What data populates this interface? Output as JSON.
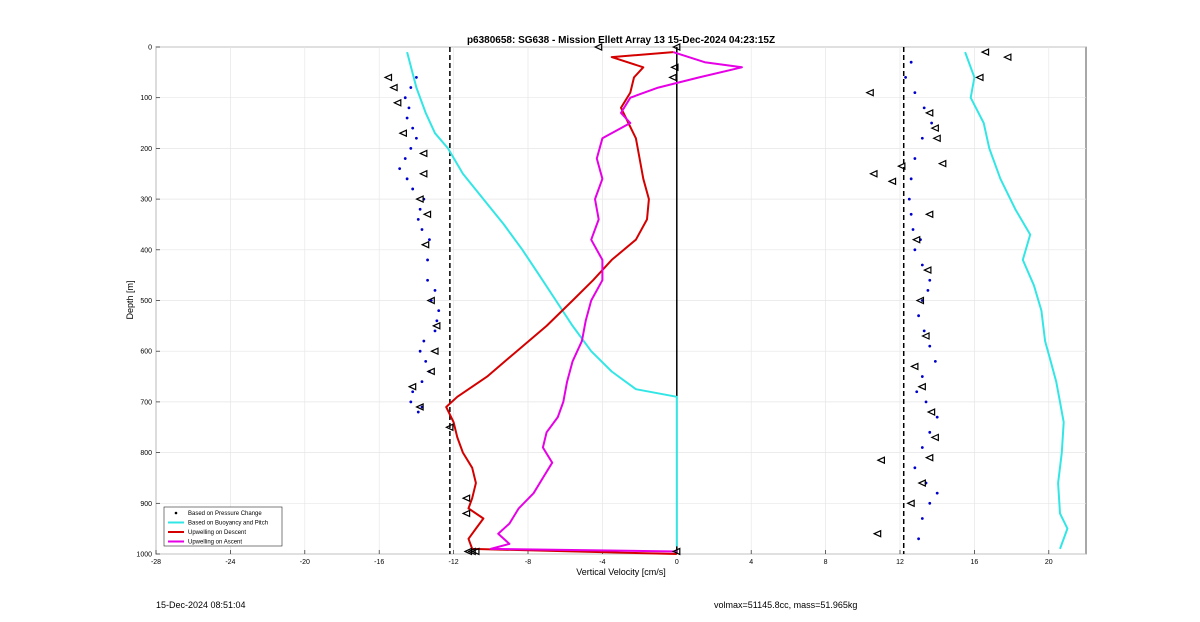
{
  "chart_data": {
    "type": "line",
    "title": "p6380658: SG638 - Mission Ellett Array 13 15-Dec-2024 04:23:15Z",
    "xlabel": "Vertical Velocity [cm/s]",
    "ylabel": "Depth [m]",
    "xlim": [
      -28,
      22
    ],
    "ylim": [
      0,
      1000
    ],
    "y_reversed": true,
    "grid": true,
    "x_ticks": [
      -28,
      -24,
      -20,
      -16,
      -12,
      -8,
      -4,
      0,
      4,
      8,
      12,
      16,
      20
    ],
    "y_ticks": [
      0,
      100,
      200,
      300,
      400,
      500,
      600,
      700,
      800,
      900,
      1000
    ],
    "legend_position": "bottom-left",
    "reference_lines": [
      {
        "kind": "dashed",
        "x": -12.2,
        "color": "#000000"
      },
      {
        "kind": "solid",
        "x": 0,
        "y_range": [
          0,
          1000
        ],
        "color": "#000000"
      },
      {
        "kind": "dashed",
        "x": 12.2,
        "color": "#000000"
      }
    ],
    "series": [
      {
        "name": "Based on Pressure Change",
        "style": "dots",
        "color": "#0000cc",
        "panels": [
          {
            "x": [
              -14.0,
              -14.3,
              -14.6,
              -14.4,
              -14.5,
              -14.2,
              -14.0,
              -14.3,
              -14.6,
              -14.9,
              -14.5,
              -14.2,
              -13.6,
              -13.8,
              -13.9,
              -13.7,
              -13.3,
              -13.4,
              -13.4,
              -13.0,
              -13.2,
              -12.8,
              -12.9,
              -13.0,
              -13.6,
              -13.8,
              -13.5,
              -13.3,
              -13.7,
              -14.2,
              -14.3,
              -13.7,
              -13.9
            ],
            "y": [
              60,
              80,
              100,
              120,
              140,
              160,
              180,
              200,
              220,
              240,
              260,
              280,
              300,
              320,
              340,
              360,
              380,
              420,
              460,
              480,
              500,
              520,
              540,
              560,
              580,
              600,
              620,
              640,
              660,
              680,
              700,
              710,
              720
            ]
          },
          {
            "x": [
              12.6,
              12.3,
              12.8,
              13.3,
              13.7,
              13.2,
              12.8,
              12.6,
              12.5,
              12.6,
              12.7,
              13.1,
              12.8,
              13.2,
              13.6,
              13.5,
              13.2,
              13.0,
              13.3,
              13.6,
              13.9,
              13.2,
              12.9,
              13.4,
              14.0,
              13.6,
              13.2,
              12.8,
              13.4,
              14.0,
              13.6,
              13.2,
              13.0
            ],
            "y": [
              30,
              60,
              90,
              120,
              150,
              180,
              220,
              260,
              300,
              330,
              360,
              380,
              400,
              430,
              460,
              480,
              500,
              530,
              560,
              590,
              620,
              650,
              680,
              700,
              730,
              760,
              790,
              830,
              860,
              880,
              900,
              930,
              970
            ]
          }
        ]
      },
      {
        "name": "Based on Buoyancy and Pitch",
        "style": "line",
        "color": "#33e6e6",
        "panels": [
          {
            "x": [
              -14.5,
              -14.0,
              -13.5,
              -13.0,
              -12.3,
              -11.5,
              -10.4,
              -9.3,
              -8.3,
              -7.4,
              -6.5,
              -5.6,
              -4.6,
              -3.5,
              -2.2,
              0.0,
              0.0,
              0.0,
              0.0
            ],
            "y": [
              10,
              80,
              130,
              170,
              200,
              250,
              300,
              350,
              400,
              450,
              500,
              550,
              600,
              640,
              675,
              690,
              800,
              900,
              985
            ]
          },
          {
            "x": [
              15.5,
              16.0,
              15.8,
              16.5,
              16.8,
              17.4,
              18.2,
              19.0,
              18.6,
              19.2,
              19.6,
              19.8,
              20.1,
              20.4,
              20.6,
              20.8,
              20.7,
              20.5,
              20.6,
              21.0,
              20.6
            ],
            "y": [
              10,
              60,
              100,
              150,
              200,
              260,
              320,
              370,
              420,
              470,
              520,
              580,
              620,
              660,
              700,
              740,
              800,
              860,
              920,
              950,
              990
            ]
          }
        ]
      },
      {
        "name": "Upwelling on Descent",
        "style": "line",
        "color": "#d40000",
        "x": [
          -0.2,
          -3.5,
          -1.8,
          -2.3,
          -2.5,
          -3.0,
          -2.6,
          -2.2,
          -2.0,
          -1.8,
          -1.5,
          -1.6,
          -2.2,
          -3.5,
          -4.5,
          -5.6,
          -7.0,
          -8.6,
          -10.2,
          -11.8,
          -12.4,
          -12.0,
          -11.8,
          -11.5,
          -11.0,
          -10.8,
          -11.0,
          -11.2,
          -10.4,
          -10.8,
          -11.2,
          -11.0,
          0.0
        ],
        "y": [
          10,
          20,
          40,
          60,
          90,
          120,
          150,
          180,
          220,
          260,
          300,
          340,
          380,
          420,
          460,
          500,
          550,
          600,
          650,
          690,
          710,
          740,
          770,
          800,
          830,
          860,
          890,
          910,
          930,
          950,
          970,
          990,
          1000
        ]
      },
      {
        "name": "Upwelling on Ascent",
        "style": "line",
        "color": "#e600e6",
        "x": [
          -0.2,
          1.5,
          3.5,
          1.2,
          -1.0,
          -2.5,
          -3.0,
          -2.5,
          -4.0,
          -4.3,
          -4.0,
          -4.4,
          -4.2,
          -4.6,
          -4.0,
          -4.0,
          -4.6,
          -4.9,
          -5.1,
          -5.6,
          -5.9,
          -6.1,
          -6.4,
          -7.0,
          -7.2,
          -6.7,
          -7.2,
          -7.7,
          -8.5,
          -9.0,
          -9.6,
          -9.0,
          -10.0,
          0.0
        ],
        "y": [
          10,
          30,
          40,
          60,
          80,
          100,
          130,
          150,
          180,
          220,
          260,
          300,
          340,
          380,
          420,
          460,
          500,
          540,
          580,
          620,
          660,
          700,
          730,
          760,
          790,
          820,
          850,
          880,
          910,
          940,
          960,
          980,
          990,
          995
        ]
      }
    ],
    "markers": [
      {
        "shape": "triangle",
        "panel": 0,
        "x": [
          -15.5,
          -15.2,
          -15.0,
          -14.7,
          -13.6,
          -13.6,
          -13.8,
          -13.4,
          -13.5,
          -13.2,
          -12.9,
          -13.0,
          -13.2,
          -14.2,
          -13.8,
          -12.2,
          -11.3,
          -11.3,
          -10.8
        ],
        "y": [
          60,
          80,
          110,
          170,
          210,
          250,
          300,
          330,
          390,
          500,
          550,
          600,
          640,
          670,
          710,
          750,
          890,
          920,
          995
        ]
      },
      {
        "shape": "triangle",
        "panel": 1,
        "x": [
          16.6,
          17.8,
          16.3,
          10.4,
          13.6,
          13.9,
          14.0,
          14.3,
          10.6,
          12.1,
          11.6,
          13.6,
          12.9,
          13.5,
          13.1,
          13.4,
          12.8,
          13.2,
          13.7,
          13.9,
          13.6,
          11.0,
          13.2,
          12.6,
          10.8
        ],
        "y": [
          10,
          20,
          60,
          90,
          130,
          160,
          180,
          230,
          250,
          235,
          265,
          330,
          380,
          440,
          500,
          570,
          630,
          670,
          720,
          770,
          810,
          815,
          860,
          900,
          960
        ]
      },
      {
        "shape": "triangle",
        "panel": 2,
        "x": [
          -4.2,
          0.0,
          -0.1,
          -0.2,
          -11.0,
          -11.2,
          0.0
        ],
        "y": [
          0,
          0,
          40,
          60,
          995,
          995,
          995
        ]
      }
    ],
    "legend": [
      {
        "label": "Based on Pressure Change",
        "color": "#000000",
        "style": "dot"
      },
      {
        "label": "Based on Buoyancy and Pitch",
        "color": "#33e6e6",
        "style": "line"
      },
      {
        "label": "Upwelling on Descent",
        "color": "#d40000",
        "style": "line"
      },
      {
        "label": "Upwelling on Ascent",
        "color": "#e600e6",
        "style": "line"
      }
    ]
  },
  "footer": {
    "timestamp": "15-Dec-2024 08:51:04",
    "volmax": "volmax=51145.8cc, mass=51.965kg"
  }
}
